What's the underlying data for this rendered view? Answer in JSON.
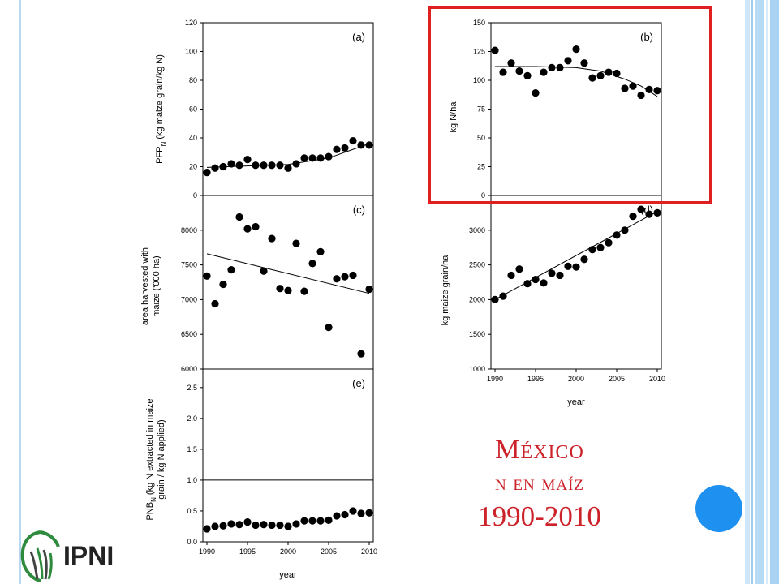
{
  "slide": {
    "title_line1": "México",
    "title_line2": "n en maíz",
    "title_line3": "1990-2010",
    "accent_color": "#cc2229",
    "highlight_color": "#e02020",
    "dot_color": "#1e90ef"
  },
  "logo": {
    "text": "IPNI",
    "icon": "ipni-logo-icon"
  },
  "chart_data": [
    {
      "id": "a",
      "type": "scatter",
      "panel_label": "(a)",
      "ylabel_main": "PFP",
      "ylabel_sub": "N",
      "ylabel_rest": " (kg maize grain/kg N)",
      "ylim": [
        0,
        120
      ],
      "yticks": [
        0,
        20,
        40,
        60,
        80,
        100,
        120
      ],
      "ytick_labels": [
        "0",
        "20",
        "40",
        "60",
        "80",
        "100",
        "120"
      ],
      "xlim": [
        1989.5,
        2010.5
      ],
      "x": [
        1990,
        1991,
        1992,
        1993,
        1994,
        1995,
        1996,
        1997,
        1998,
        1999,
        2000,
        2001,
        2002,
        2003,
        2004,
        2005,
        2006,
        2007,
        2008,
        2009,
        2010
      ],
      "y": [
        16,
        19,
        20,
        22,
        21,
        25,
        21,
        21,
        21,
        21,
        19,
        22,
        26,
        26,
        26,
        27,
        32,
        33,
        38,
        35,
        35
      ],
      "trend": [
        [
          1990,
          19.5
        ],
        [
          1995,
          20.5
        ],
        [
          2000,
          21.5
        ],
        [
          2005,
          26
        ],
        [
          2010,
          36
        ]
      ]
    },
    {
      "id": "b",
      "type": "scatter",
      "panel_label": "(b)",
      "ylabel": "kg N/ha",
      "ylim": [
        0,
        150
      ],
      "yticks": [
        0,
        25,
        50,
        75,
        100,
        125,
        150
      ],
      "ytick_labels": [
        "0",
        "25",
        "50",
        "75",
        "100",
        "125",
        "150"
      ],
      "xlim": [
        1989.5,
        2010.5
      ],
      "x": [
        1990,
        1991,
        1992,
        1993,
        1994,
        1995,
        1996,
        1997,
        1998,
        1999,
        2000,
        2001,
        2002,
        2003,
        2004,
        2005,
        2006,
        2007,
        2008,
        2009,
        2010
      ],
      "y": [
        126,
        107,
        115,
        108,
        104,
        89,
        107,
        111,
        111,
        117,
        127,
        115,
        102,
        104,
        107,
        106,
        93,
        95,
        87,
        92,
        91
      ],
      "trend": [
        [
          1990,
          112
        ],
        [
          1995,
          112
        ],
        [
          2000,
          111
        ],
        [
          2003,
          108
        ],
        [
          2006,
          101
        ],
        [
          2008,
          95
        ],
        [
          2010,
          86
        ]
      ]
    },
    {
      "id": "c",
      "type": "scatter",
      "panel_label": "(c)",
      "ylabel_line1": "area harvested with",
      "ylabel_line2": "maize ('000 ha)",
      "ylim": [
        6000,
        8500
      ],
      "yticks": [
        6000,
        6500,
        7000,
        7500,
        8000
      ],
      "ytick_labels": [
        "6000",
        "6500",
        "7000",
        "7500",
        "8000"
      ],
      "xlim": [
        1989.5,
        2010.5
      ],
      "x": [
        1990,
        1991,
        1992,
        1993,
        1994,
        1995,
        1996,
        1997,
        1998,
        1999,
        2000,
        2001,
        2002,
        2003,
        2004,
        2005,
        2006,
        2007,
        2008,
        2009,
        2010
      ],
      "y": [
        7340,
        6940,
        7220,
        7430,
        8190,
        8020,
        8050,
        7410,
        7880,
        7160,
        7130,
        7810,
        7120,
        7520,
        7690,
        6600,
        7300,
        7330,
        7350,
        6220,
        7150
      ],
      "trend": [
        [
          1990,
          7660
        ],
        [
          2010,
          7090
        ]
      ]
    },
    {
      "id": "d",
      "type": "scatter",
      "panel_label": "(d)",
      "ylabel": "kg maize grain/ha",
      "xlabel": "year",
      "ylim": [
        1000,
        3500
      ],
      "yticks": [
        1000,
        1500,
        2000,
        2500,
        3000
      ],
      "ytick_labels": [
        "1000",
        "1500",
        "2000",
        "2500",
        "3000"
      ],
      "xlim": [
        1989.5,
        2010.5
      ],
      "xticks": [
        1990,
        1995,
        2000,
        2005,
        2010
      ],
      "xtick_labels": [
        "1990",
        "1995",
        "2000",
        "2005",
        "2010"
      ],
      "x": [
        1990,
        1991,
        1992,
        1993,
        1994,
        1995,
        1996,
        1997,
        1998,
        1999,
        2000,
        2001,
        2002,
        2003,
        2004,
        2005,
        2006,
        2007,
        2008,
        2009,
        2010
      ],
      "y": [
        2000,
        2050,
        2350,
        2440,
        2230,
        2290,
        2240,
        2380,
        2350,
        2480,
        2470,
        2580,
        2720,
        2750,
        2820,
        2930,
        3000,
        3200,
        3300,
        3230,
        3250
      ],
      "trend": [
        [
          1990,
          2000
        ],
        [
          2010,
          3270
        ]
      ]
    },
    {
      "id": "e",
      "type": "scatter",
      "panel_label": "(e)",
      "ylabel_main": "PNB",
      "ylabel_sub": "N",
      "ylabel_rest": " (kg N extracted in maize",
      "ylabel_line2": "grain / kg N applied)",
      "xlabel": "year",
      "ylim": [
        0,
        2.8
      ],
      "yticks": [
        0.0,
        0.5,
        1.0,
        1.5,
        2.0,
        2.5
      ],
      "ytick_labels": [
        "0.0",
        "0.5",
        "1.0",
        "1.5",
        "2.0",
        "2.5"
      ],
      "hline": 1.0,
      "xlim": [
        1989.5,
        2010.5
      ],
      "xticks": [
        1990,
        1995,
        2000,
        2005,
        2010
      ],
      "xtick_labels": [
        "1990",
        "1995",
        "2000",
        "2005",
        "2010"
      ],
      "x": [
        1990,
        1991,
        1992,
        1993,
        1994,
        1995,
        1996,
        1997,
        1998,
        1999,
        2000,
        2001,
        2002,
        2003,
        2004,
        2005,
        2006,
        2007,
        2008,
        2009,
        2010
      ],
      "y": [
        0.21,
        0.25,
        0.26,
        0.29,
        0.28,
        0.32,
        0.27,
        0.28,
        0.27,
        0.27,
        0.25,
        0.29,
        0.34,
        0.34,
        0.34,
        0.35,
        0.42,
        0.44,
        0.5,
        0.46,
        0.47
      ]
    }
  ]
}
